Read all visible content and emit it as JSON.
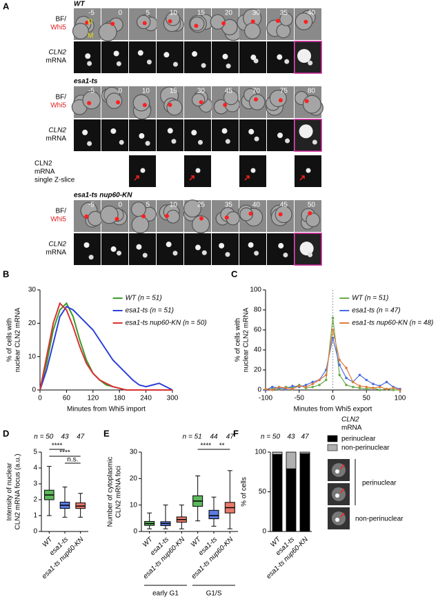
{
  "panel_a": {
    "label": "A",
    "strains": [
      {
        "name": "WT",
        "times": [
          -5,
          0,
          5,
          10,
          15,
          20,
          30,
          35,
          40
        ],
        "has_slice": false
      },
      {
        "name": "esa1-ts",
        "times": [
          -5,
          0,
          10,
          15,
          30,
          45,
          70,
          75,
          80
        ],
        "has_slice": true
      },
      {
        "name": "esa1-ts nup60-KN",
        "times": [
          -5,
          0,
          5,
          10,
          25,
          35,
          40,
          45,
          50
        ],
        "has_slice": false
      }
    ],
    "bf": "BF/",
    "whi5": "Whi5",
    "mrna": [
      "CLN2",
      "mRNA"
    ],
    "slice": [
      "CLN2",
      "mRNA",
      "single Z-slice"
    ],
    "cell_labels": [
      "D",
      "M"
    ]
  },
  "chart_data": [
    {
      "type": "line",
      "panel": "B",
      "ylabel": [
        "% of cells with",
        "nuclear CLN2 mRNA"
      ],
      "xlabel": "Minutes from Whi5 import",
      "x": [
        0,
        15,
        30,
        45,
        60,
        75,
        90,
        105,
        120,
        135,
        150,
        165,
        180,
        195,
        210,
        225,
        240,
        255,
        270,
        285,
        300
      ],
      "series": [
        {
          "name": "WT (n = 51)",
          "color": "#3a9a2a",
          "values": [
            0,
            8,
            18,
            24,
            26,
            22,
            15,
            9,
            5,
            3,
            1.5,
            1,
            0.5,
            0,
            0,
            0,
            0,
            0,
            0,
            0,
            0
          ]
        },
        {
          "name": "esa1-ts (n = 51)",
          "color": "#2a3fd8",
          "values": [
            0,
            6,
            14,
            22,
            25,
            24,
            22,
            20,
            18,
            15,
            12,
            9,
            7,
            5,
            3,
            1.5,
            1,
            1.5,
            2,
            1,
            0
          ]
        },
        {
          "name": "esa1-ts nup60-KN (n = 50)",
          "color": "#d83030",
          "values": [
            0,
            10,
            20,
            26,
            24,
            19,
            13,
            8,
            5,
            3,
            2,
            1,
            0.5,
            0,
            0,
            0,
            0,
            0,
            0,
            0,
            0
          ]
        }
      ],
      "xlim": [
        0,
        300
      ],
      "xticks": [
        0,
        60,
        120,
        180,
        240,
        300
      ],
      "ylim": [
        0,
        30
      ],
      "yticks": [
        0,
        10,
        20,
        30
      ],
      "markers": false
    },
    {
      "type": "line",
      "panel": "C",
      "ylabel": [
        "% of cells with",
        "nuclear CLN2 mRNA"
      ],
      "xlabel": "Minutes from Whi5 export",
      "x": [
        -100,
        -90,
        -80,
        -70,
        -60,
        -50,
        -40,
        -30,
        -20,
        -10,
        0,
        10,
        20,
        30,
        40,
        50,
        60,
        70,
        80,
        90,
        100
      ],
      "series": [
        {
          "name": "WT (n = 51)",
          "color": "#6aaa4a",
          "values": [
            0,
            2,
            1,
            3,
            2,
            5,
            2,
            3,
            5,
            10,
            72,
            15,
            5,
            3,
            2,
            1,
            2,
            0,
            1,
            0,
            0
          ]
        },
        {
          "name": "esa1-ts (n = 47)",
          "color": "#4a6ae0",
          "values": [
            0,
            3,
            2,
            1,
            4,
            3,
            5,
            8,
            10,
            20,
            52,
            25,
            12,
            8,
            15,
            10,
            6,
            4,
            8,
            3,
            1
          ]
        },
        {
          "name": "esa1-ts nup60-KN (n = 48)",
          "color": "#e07a3a",
          "values": [
            1,
            0,
            3,
            2,
            1,
            4,
            3,
            6,
            10,
            15,
            60,
            30,
            22,
            8,
            4,
            3,
            2,
            3,
            1,
            2,
            0
          ]
        }
      ],
      "xlim": [
        -100,
        100
      ],
      "xticks": [
        -100,
        -50,
        0,
        50,
        100
      ],
      "ylim": [
        0,
        100
      ],
      "yticks": [
        0,
        20,
        40,
        60,
        80,
        100
      ],
      "markers": true
    },
    {
      "type": "box",
      "panel": "D",
      "ylabel": [
        "Intensity of nuclear",
        "CLN2 mRNA focus (a.u.)"
      ],
      "categories": [
        "WT",
        "esa1-ts",
        "esa1-ts nup60-KN"
      ],
      "colors": [
        "#5cb85c",
        "#5b7be0",
        "#e87a6a"
      ],
      "n_labels": [
        "n = 50",
        "43",
        "47"
      ],
      "significance": [
        "****",
        "****",
        "n.s."
      ],
      "min": [
        1.0,
        0.9,
        0.9
      ],
      "q1": [
        2.0,
        1.45,
        1.45
      ],
      "median": [
        2.3,
        1.65,
        1.6
      ],
      "q3": [
        2.6,
        1.85,
        1.8
      ],
      "max": [
        4.1,
        2.8,
        2.4
      ],
      "ylim": [
        0,
        5
      ],
      "yticks": [
        0,
        1,
        2,
        3,
        4,
        5
      ]
    },
    {
      "type": "box",
      "panel": "E",
      "ylabel": [
        "Number of cytoplasmic",
        "CLN2 mRNA foci"
      ],
      "categories": [
        "WT",
        "esa1-ts",
        "esa1-ts nup60-KN",
        "WT",
        "esa1-ts",
        "esa1-ts nup60-KN"
      ],
      "colors": [
        "#5cb85c",
        "#5b7be0",
        "#e87a6a",
        "#5cb85c",
        "#5b7be0",
        "#e87a6a"
      ],
      "n_labels": [
        "n = 51",
        "44",
        "47"
      ],
      "significance": [
        "****",
        "**"
      ],
      "groups": [
        "early G1",
        "G1/S"
      ],
      "min": [
        1,
        1,
        1,
        4,
        2,
        1
      ],
      "q1": [
        2.3,
        2.2,
        3.5,
        9.5,
        4.8,
        7
      ],
      "median": [
        3,
        3,
        4.5,
        11.5,
        6,
        9
      ],
      "q3": [
        3.8,
        3.7,
        5.5,
        13.5,
        8,
        11
      ],
      "max": [
        7,
        10,
        10,
        21,
        13,
        23
      ],
      "ylim": [
        0,
        30
      ],
      "yticks": [
        0,
        10,
        20,
        30
      ]
    },
    {
      "type": "stacked_bar",
      "panel": "F",
      "ylabel": [
        "% of cells"
      ],
      "categories": [
        "WT",
        "esa1-ts",
        "esa1-ts nup60-KN"
      ],
      "n_labels": [
        "n = 50",
        "43",
        "47"
      ],
      "series": [
        {
          "name": "perinuclear",
          "color": "#000000",
          "values": [
            97,
            79,
            98
          ]
        },
        {
          "name": "non-perinuclear",
          "color": "#b0b0b0",
          "values": [
            3,
            21,
            2
          ]
        }
      ],
      "legend_title": [
        "CLN2",
        "mRNA"
      ],
      "inset_labels": [
        "perinuclear",
        "non-perinuclear"
      ],
      "ylim": [
        0,
        100
      ],
      "yticks": [
        0,
        50,
        100
      ]
    }
  ]
}
